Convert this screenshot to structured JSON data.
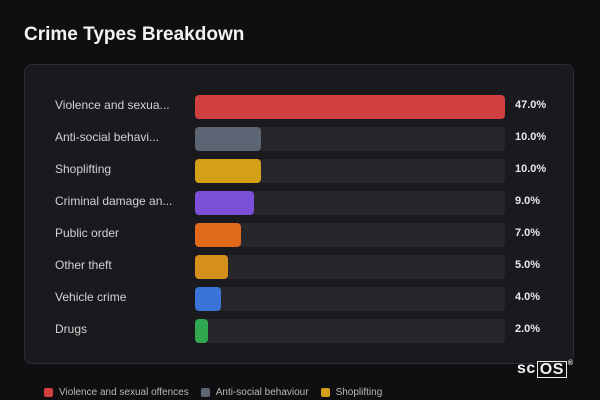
{
  "page": {
    "title": "Crime Types Breakdown"
  },
  "chart_data": {
    "type": "bar",
    "orientation": "horizontal",
    "title": "",
    "xlabel": "",
    "ylabel": "",
    "xlim": [
      0,
      47
    ],
    "unit": "%",
    "grid": false,
    "legend_position": "bottom",
    "categories": [
      "Violence and sexua...",
      "Anti-social behavi...",
      "Shoplifting",
      "Criminal damage an...",
      "Public order",
      "Other theft",
      "Vehicle crime",
      "Drugs"
    ],
    "values": [
      47.0,
      10.0,
      10.0,
      9.0,
      7.0,
      5.0,
      4.0,
      2.0
    ],
    "value_labels": [
      "47.0%",
      "10.0%",
      "10.0%",
      "9.0%",
      "7.0%",
      "5.0%",
      "4.0%",
      "2.0%"
    ],
    "colors": [
      "#d04040",
      "#5c6573",
      "#d4a017",
      "#7b4fd8",
      "#e0691c",
      "#d4901a",
      "#3b74d8",
      "#2fa84f"
    ],
    "legend": [
      {
        "label": "Violence and sexual offences",
        "color": "#d04040"
      },
      {
        "label": "Anti-social behaviour",
        "color": "#5c6573"
      },
      {
        "label": "Shoplifting",
        "color": "#d4a017"
      }
    ]
  },
  "logo": {
    "prefix": "sc",
    "boxed": "OS",
    "mark": "®"
  }
}
